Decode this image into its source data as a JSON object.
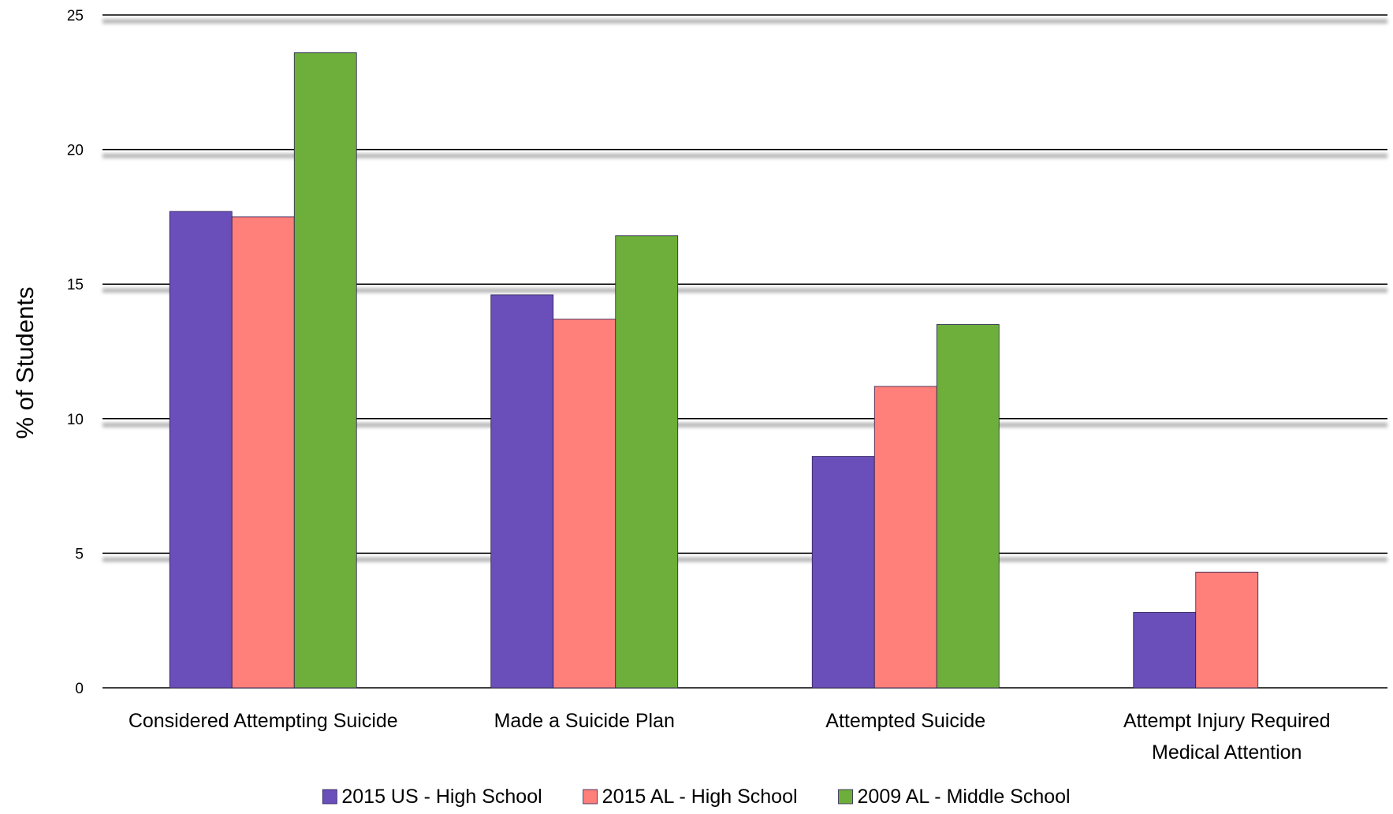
{
  "chart_data": {
    "type": "bar",
    "ylabel": "% of Students",
    "xlabel": "",
    "ylim": [
      0,
      25
    ],
    "yticks": [
      "0",
      "5",
      "10",
      "15",
      "20",
      "25"
    ],
    "grid": true,
    "legend_position": "bottom",
    "categories": [
      [
        "Considered Attempting Suicide"
      ],
      [
        "Made a Suicide Plan"
      ],
      [
        "Attempted Suicide"
      ],
      [
        "Attempt Injury Required",
        "Medical Attention"
      ]
    ],
    "series": [
      {
        "name": "2015 US - High School",
        "color": "#6a4fba",
        "values": [
          17.7,
          14.6,
          8.6,
          2.8
        ]
      },
      {
        "name": "2015 AL - High School",
        "color": "#ff7f7a",
        "values": [
          17.5,
          13.7,
          11.2,
          4.3
        ]
      },
      {
        "name": "2009 AL - Middle School",
        "color": "#6daf3a",
        "values": [
          23.6,
          16.8,
          13.5,
          null
        ]
      }
    ]
  }
}
